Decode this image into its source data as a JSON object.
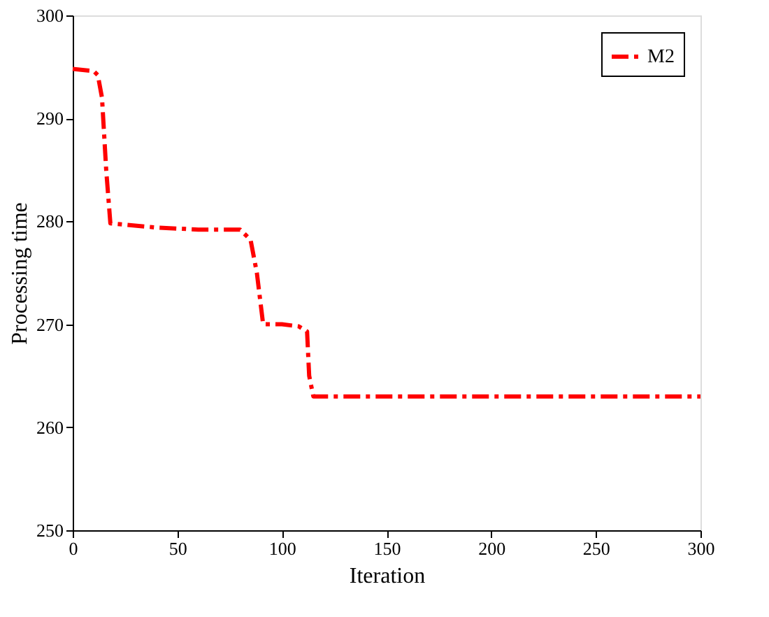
{
  "chart_data": {
    "type": "line",
    "xlabel": "Iteration",
    "ylabel": "Processing time",
    "xlim": [
      0,
      300
    ],
    "ylim": [
      250,
      300
    ],
    "xticks": [
      0,
      50,
      100,
      150,
      200,
      250,
      300
    ],
    "yticks": [
      250,
      260,
      270,
      280,
      290,
      300
    ],
    "grid": false,
    "legend": "top right",
    "line_style": "dashed",
    "marker": "none",
    "series": [
      {
        "name": "M2",
        "color": "#ff0000",
        "x": [
          0,
          10,
          12,
          14,
          16,
          18,
          40,
          60,
          80,
          85,
          88,
          91,
          100,
          108,
          112,
          113,
          115,
          300
        ],
        "values": [
          294.8,
          294.6,
          294.2,
          292,
          285,
          279.8,
          279.4,
          279.2,
          279.2,
          278.2,
          275,
          270,
          270,
          269.8,
          269.3,
          265,
          263,
          263
        ]
      }
    ]
  }
}
